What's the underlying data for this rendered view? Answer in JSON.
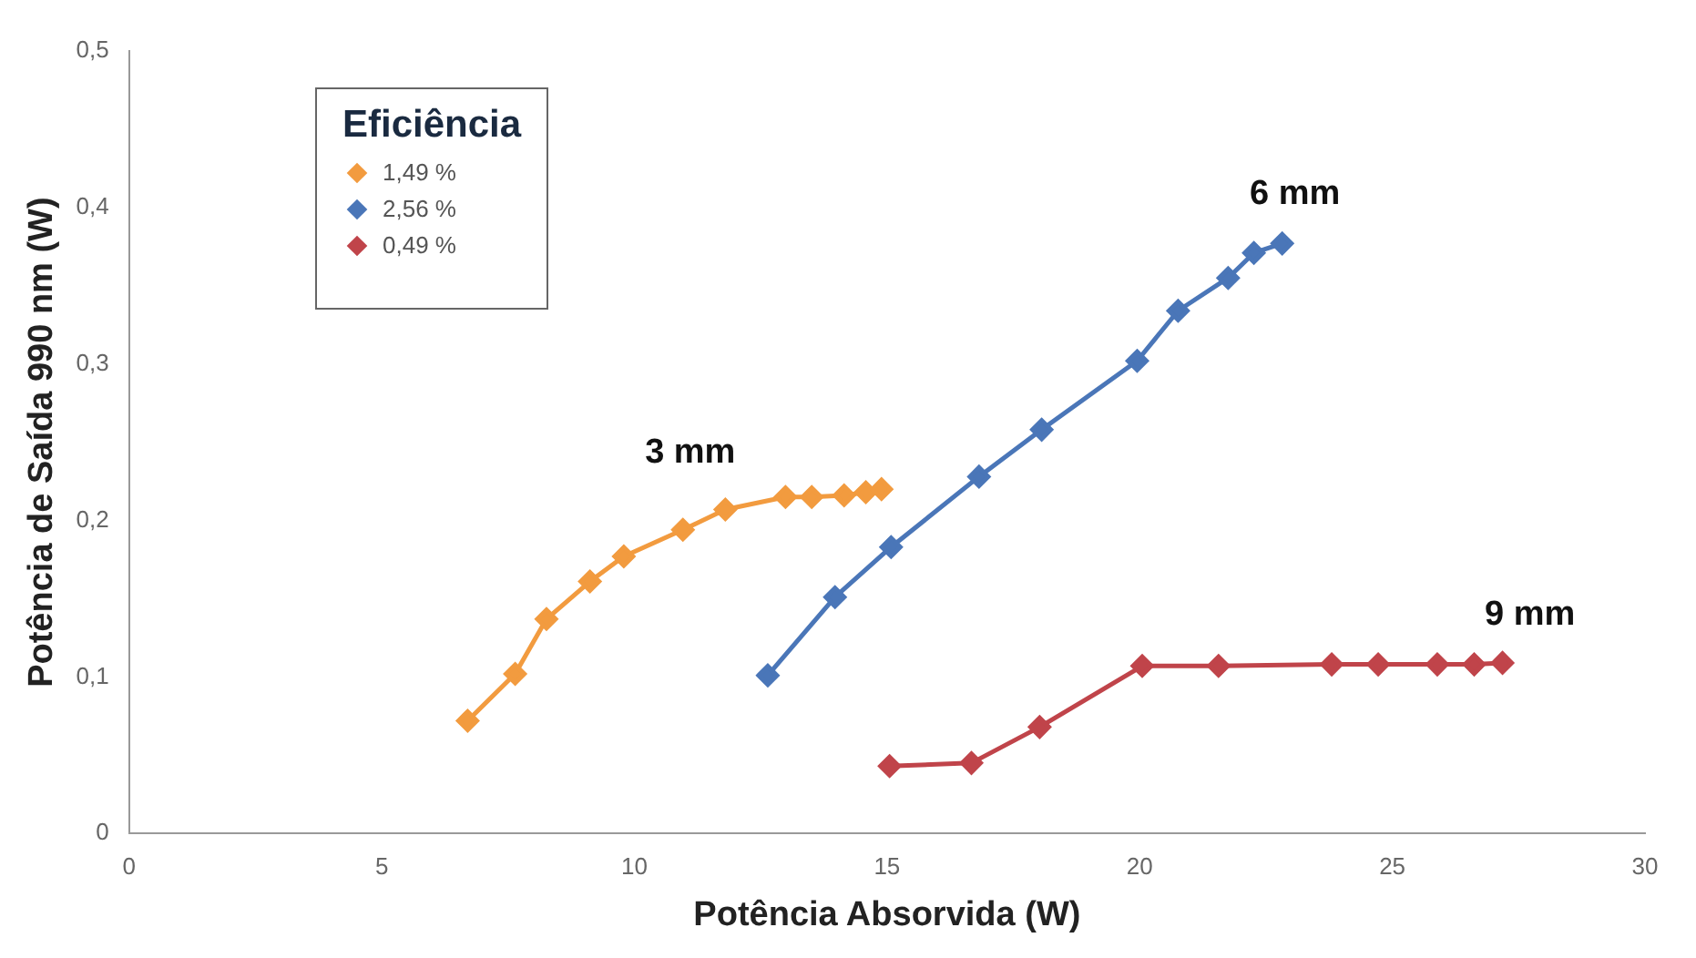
{
  "chart_data": {
    "type": "line",
    "xlabel": "Potência Absorvida (W)",
    "ylabel": "Potência de Saída 990 nm (W)",
    "legend_title": "Eficiência",
    "legend": "top left",
    "grid": false,
    "marker": "diamond",
    "line_style": "solid",
    "xlim": [
      0,
      30
    ],
    "xticks": [
      0,
      5,
      10,
      15,
      20,
      25,
      30
    ],
    "ylim": [
      0,
      0.5
    ],
    "yticks": [
      {
        "value": 0,
        "label": "0"
      },
      {
        "value": 0.1,
        "label": "0,1"
      },
      {
        "value": 0.2,
        "label": "0,2"
      },
      {
        "value": 0.3,
        "label": "0,3"
      },
      {
        "value": 0.4,
        "label": "0,4"
      },
      {
        "value": 0.5,
        "label": "0,5"
      }
    ],
    "series": [
      {
        "name": "1,49 %",
        "color": "#f29b3f",
        "x": [
          6.7,
          7.64,
          8.26,
          9.12,
          9.79,
          10.96,
          11.8,
          12.99,
          13.51,
          14.15,
          14.58,
          14.89
        ],
        "values": [
          0.072,
          0.102,
          0.137,
          0.161,
          0.177,
          0.194,
          0.207,
          0.215,
          0.215,
          0.216,
          0.218,
          0.22
        ]
      },
      {
        "name": "2,56 %",
        "color": "#4a76b8",
        "x": [
          12.64,
          13.97,
          15.08,
          16.82,
          18.06,
          19.95,
          20.76,
          21.75,
          22.26,
          22.82
        ],
        "values": [
          0.101,
          0.151,
          0.183,
          0.228,
          0.258,
          0.302,
          0.334,
          0.355,
          0.371,
          0.377
        ]
      },
      {
        "name": "0,49 %",
        "color": "#c0444a",
        "x": [
          15.05,
          16.67,
          18.02,
          20.05,
          21.56,
          23.8,
          24.72,
          25.89,
          26.62,
          27.18
        ],
        "values": [
          0.043,
          0.045,
          0.068,
          0.107,
          0.107,
          0.108,
          0.108,
          0.108,
          0.108,
          0.109
        ]
      }
    ],
    "annotations": [
      "3 mm",
      "6 mm",
      "9 mm"
    ]
  }
}
